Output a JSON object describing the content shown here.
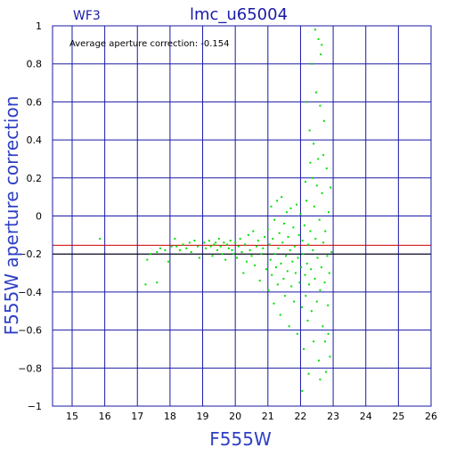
{
  "chart_data": {
    "type": "scatter",
    "title": "lmc_u65004",
    "subtitle": "WF3",
    "xlabel": "F555W",
    "ylabel": "F555W aperture correction",
    "annotation": "Average aperture correction: -0.154",
    "xlim": [
      14.4,
      26
    ],
    "ylim": [
      -1,
      1
    ],
    "x_ticks": [
      15,
      16,
      17,
      18,
      19,
      20,
      21,
      22,
      23,
      24,
      25,
      26
    ],
    "y_ticks": [
      1,
      0.8,
      0.6,
      0.4,
      0.2,
      0,
      -0.2,
      -0.4,
      -0.6,
      -0.8,
      -1
    ],
    "x_tick_labels": [
      "15",
      "16",
      "17",
      "18",
      "19",
      "20",
      "21",
      "22",
      "23",
      "24",
      "25",
      "26"
    ],
    "y_tick_labels": [
      "1",
      "0.8",
      "0.6",
      "0.4",
      "0.2",
      "0",
      "−0.2",
      "−0.4",
      "−0.6",
      "−0.8",
      "−1"
    ],
    "grid": true,
    "reference_lines": [
      {
        "y": -0.154,
        "color": "#cc0000"
      },
      {
        "y": -0.2,
        "color": "#000000"
      }
    ],
    "point_color": "#00e000",
    "series": [
      {
        "points": [
          [
            15.85,
            -0.12
          ],
          [
            17.25,
            -0.36
          ],
          [
            17.6,
            -0.35
          ],
          [
            17.3,
            -0.23
          ],
          [
            17.4,
            -0.2
          ],
          [
            17.6,
            -0.19
          ],
          [
            17.7,
            -0.17
          ],
          [
            17.85,
            -0.18
          ],
          [
            17.95,
            -0.24
          ],
          [
            18.05,
            -0.16
          ],
          [
            18.15,
            -0.12
          ],
          [
            18.2,
            -0.16
          ],
          [
            18.3,
            -0.18
          ],
          [
            18.4,
            -0.15
          ],
          [
            18.5,
            -0.17
          ],
          [
            18.6,
            -0.14
          ],
          [
            18.65,
            -0.19
          ],
          [
            18.75,
            -0.13
          ],
          [
            18.85,
            -0.16
          ],
          [
            18.9,
            -0.22
          ],
          [
            19.05,
            -0.14
          ],
          [
            19.1,
            -0.17
          ],
          [
            19.2,
            -0.13
          ],
          [
            19.25,
            -0.16
          ],
          [
            19.3,
            -0.21
          ],
          [
            19.35,
            -0.15
          ],
          [
            19.4,
            -0.14
          ],
          [
            19.45,
            -0.18
          ],
          [
            19.5,
            -0.12
          ],
          [
            19.55,
            -0.16
          ],
          [
            19.6,
            -0.2
          ],
          [
            19.65,
            -0.14
          ],
          [
            19.7,
            -0.23
          ],
          [
            19.75,
            -0.15
          ],
          [
            19.8,
            -0.17
          ],
          [
            19.85,
            -0.13
          ],
          [
            19.9,
            -0.18
          ],
          [
            19.95,
            -0.2
          ],
          [
            20.0,
            -0.14
          ],
          [
            20.05,
            -0.22
          ],
          [
            20.1,
            -0.16
          ],
          [
            20.15,
            -0.12
          ],
          [
            20.2,
            -0.19
          ],
          [
            20.25,
            -0.3
          ],
          [
            20.3,
            -0.15
          ],
          [
            20.35,
            -0.24
          ],
          [
            20.4,
            -0.1
          ],
          [
            20.45,
            -0.18
          ],
          [
            20.5,
            -0.21
          ],
          [
            20.55,
            -0.08
          ],
          [
            20.6,
            -0.26
          ],
          [
            20.65,
            -0.16
          ],
          [
            20.7,
            -0.13
          ],
          [
            20.75,
            -0.34
          ],
          [
            20.8,
            -0.2
          ],
          [
            20.85,
            -0.17
          ],
          [
            20.9,
            -0.11
          ],
          [
            20.95,
            -0.28
          ],
          [
            21.0,
            -0.07
          ],
          [
            21.02,
            -0.39
          ],
          [
            21.05,
            -0.15
          ],
          [
            21.08,
            -0.23
          ],
          [
            21.1,
            0.05
          ],
          [
            21.12,
            -0.31
          ],
          [
            21.15,
            -0.12
          ],
          [
            21.18,
            -0.46
          ],
          [
            21.2,
            -0.02
          ],
          [
            21.22,
            -0.2
          ],
          [
            21.25,
            -0.27
          ],
          [
            21.28,
            0.08
          ],
          [
            21.3,
            -0.36
          ],
          [
            21.32,
            -0.17
          ],
          [
            21.35,
            -0.09
          ],
          [
            21.38,
            -0.52
          ],
          [
            21.4,
            -0.25
          ],
          [
            21.42,
            0.1
          ],
          [
            21.45,
            -0.14
          ],
          [
            21.48,
            -0.33
          ],
          [
            21.5,
            -0.04
          ],
          [
            21.52,
            -0.42
          ],
          [
            21.55,
            -0.21
          ],
          [
            21.58,
            0.02
          ],
          [
            21.6,
            -0.29
          ],
          [
            21.62,
            -0.11
          ],
          [
            21.65,
            -0.58
          ],
          [
            21.68,
            -0.18
          ],
          [
            21.7,
            0.04
          ],
          [
            21.72,
            -0.37
          ],
          [
            21.75,
            -0.24
          ],
          [
            21.78,
            -0.06
          ],
          [
            21.8,
            -0.45
          ],
          [
            21.82,
            -0.16
          ],
          [
            21.85,
            -0.3
          ],
          [
            21.88,
            0.06
          ],
          [
            21.9,
            -0.62
          ],
          [
            21.92,
            -0.22
          ],
          [
            21.95,
            -0.1
          ],
          [
            21.97,
            -0.35
          ],
          [
            22.0,
            0.01
          ],
          [
            22.02,
            -0.27
          ],
          [
            22.04,
            -0.48
          ],
          [
            22.06,
            -0.13
          ],
          [
            22.08,
            -0.2
          ],
          [
            22.1,
            -0.7
          ],
          [
            22.12,
            -0.05
          ],
          [
            22.14,
            -0.31
          ],
          [
            22.16,
            -0.42
          ],
          [
            22.18,
            0.08
          ],
          [
            22.2,
            -0.25
          ],
          [
            22.22,
            -0.55
          ],
          [
            22.24,
            -0.15
          ],
          [
            22.26,
            -0.36
          ],
          [
            22.28,
            0.45
          ],
          [
            22.3,
            -0.08
          ],
          [
            22.32,
            -0.28
          ],
          [
            22.34,
            -0.5
          ],
          [
            22.36,
            0.2
          ],
          [
            22.38,
            -0.18
          ],
          [
            22.4,
            -0.66
          ],
          [
            22.42,
            0.05
          ],
          [
            22.44,
            -0.33
          ],
          [
            22.46,
            -0.12
          ],
          [
            22.48,
            0.65
          ],
          [
            22.5,
            -0.45
          ],
          [
            22.52,
            -0.22
          ],
          [
            22.54,
            0.3
          ],
          [
            22.56,
            -0.76
          ],
          [
            22.58,
            -0.02
          ],
          [
            22.6,
            -0.39
          ],
          [
            22.62,
            0.85
          ],
          [
            22.64,
            -0.27
          ],
          [
            22.66,
            0.12
          ],
          [
            22.68,
            -0.58
          ],
          [
            22.7,
            -0.14
          ],
          [
            22.72,
            0.5
          ],
          [
            22.74,
            -0.35
          ],
          [
            22.76,
            -0.08
          ],
          [
            22.78,
            -0.82
          ],
          [
            22.8,
            0.25
          ],
          [
            22.82,
            -0.21
          ],
          [
            22.84,
            -0.47
          ],
          [
            22.86,
            0.02
          ],
          [
            22.88,
            -0.3
          ],
          [
            22.9,
            -0.74
          ],
          [
            22.92,
            0.15
          ],
          [
            22.95,
            -0.19
          ],
          [
            22.05,
            -0.92
          ],
          [
            22.45,
            0.98
          ],
          [
            22.55,
            0.93
          ],
          [
            22.35,
            0.8
          ],
          [
            22.65,
            0.9
          ],
          [
            22.2,
            0.6
          ],
          [
            22.4,
            0.38
          ],
          [
            22.6,
            0.58
          ],
          [
            22.3,
            0.28
          ],
          [
            22.7,
            0.32
          ],
          [
            22.15,
            0.18
          ],
          [
            22.5,
            0.16
          ],
          [
            22.85,
            -0.62
          ],
          [
            22.6,
            -0.86
          ],
          [
            22.25,
            -0.83
          ],
          [
            22.75,
            -0.66
          ]
        ]
      }
    ]
  }
}
